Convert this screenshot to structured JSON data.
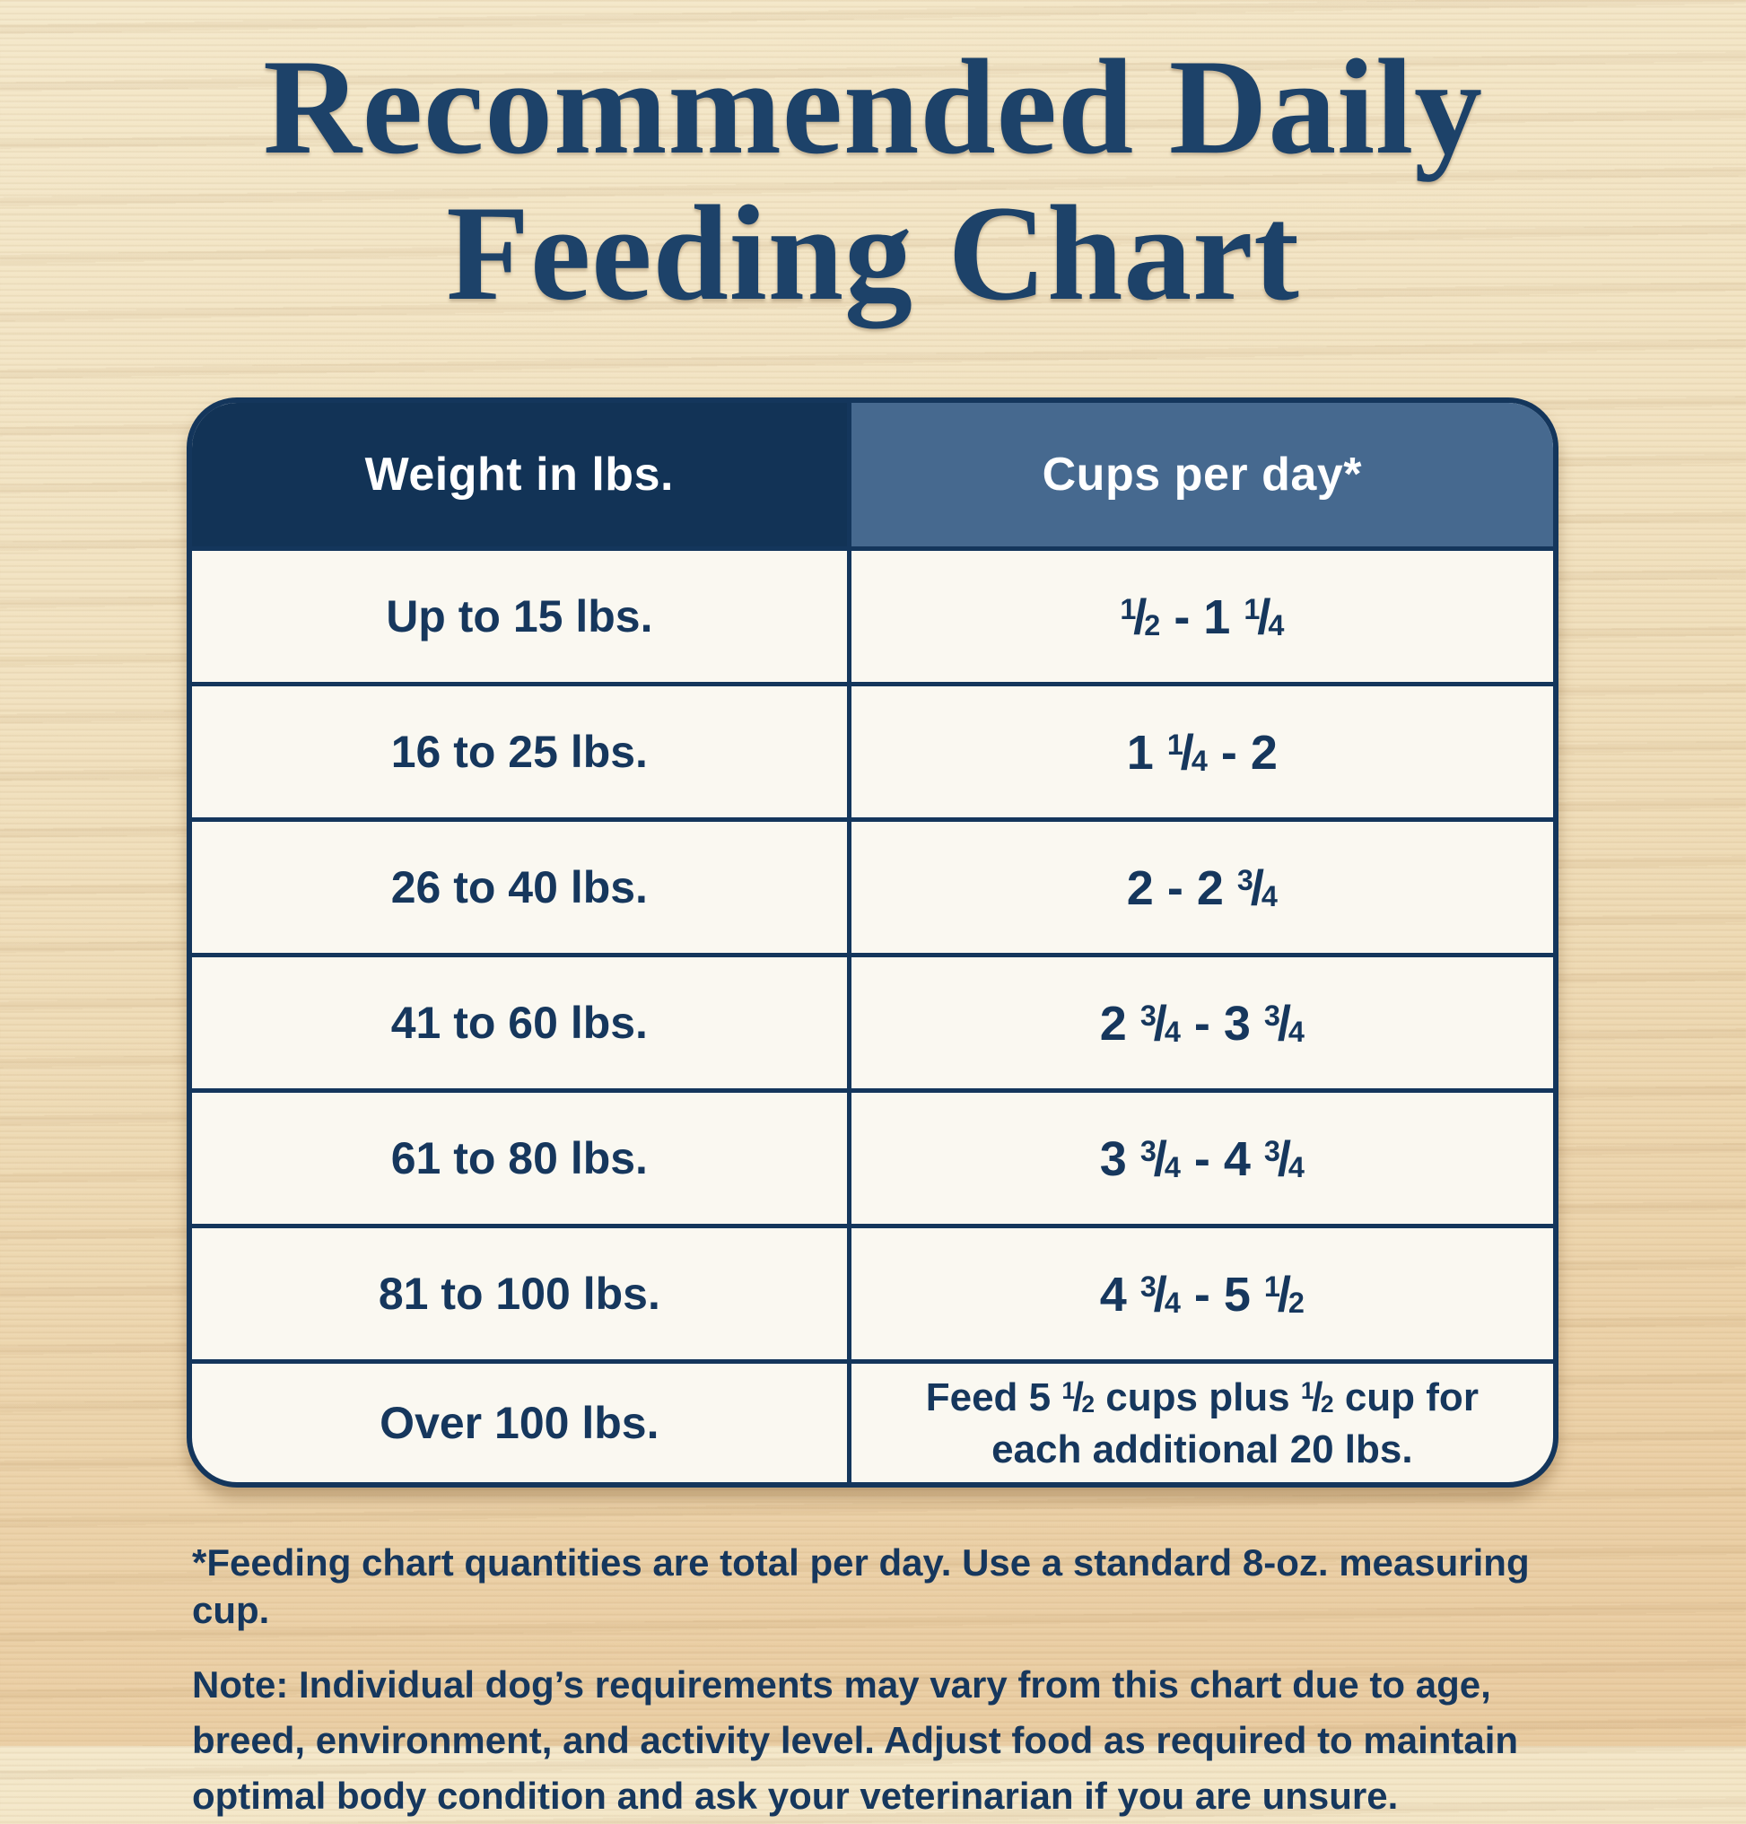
{
  "page": {
    "title_line1": "Recommended Daily",
    "title_line2": "Feeding Chart"
  },
  "chart_data": {
    "type": "table",
    "title": "Recommended Daily Feeding Chart",
    "columns": [
      "Weight in lbs.",
      "Cups per day*"
    ],
    "rows": [
      [
        "Up to 15 lbs.",
        "1/2 - 1 1/4"
      ],
      [
        "16 to 25 lbs.",
        "1 1/4 - 2"
      ],
      [
        "26 to 40 lbs.",
        "2 - 2 3/4"
      ],
      [
        "41 to 60 lbs.",
        "2 3/4 - 3 3/4"
      ],
      [
        "61 to 80 lbs.",
        "3 3/4 - 4 3/4"
      ],
      [
        "81 to 100 lbs.",
        "4 3/4 - 5 1/2"
      ],
      [
        "Over 100 lbs.",
        "Feed 5 1/2 cups plus 1/2 cup for each additional 20 lbs."
      ]
    ]
  },
  "footnotes": {
    "asterisk_note": "*Feeding chart quantities are total per day. Use a standard 8-oz. measuring cup.",
    "note_label": "Note:",
    "note_text": "Individual dog’s requirements may vary from this chart due to age, breed, environment, and activity level. Adjust food as required to maintain optimal body condition and ask your veterinarian if you are unsure."
  },
  "colors": {
    "header_dark_navy": "#123356",
    "header_slate_blue": "#46698F",
    "border_navy": "#14365C",
    "text_navy": "#16375D",
    "title_navy": "#1D4269",
    "cell_background": "#FAF8F1",
    "wood_background": "#EEDAB4"
  }
}
